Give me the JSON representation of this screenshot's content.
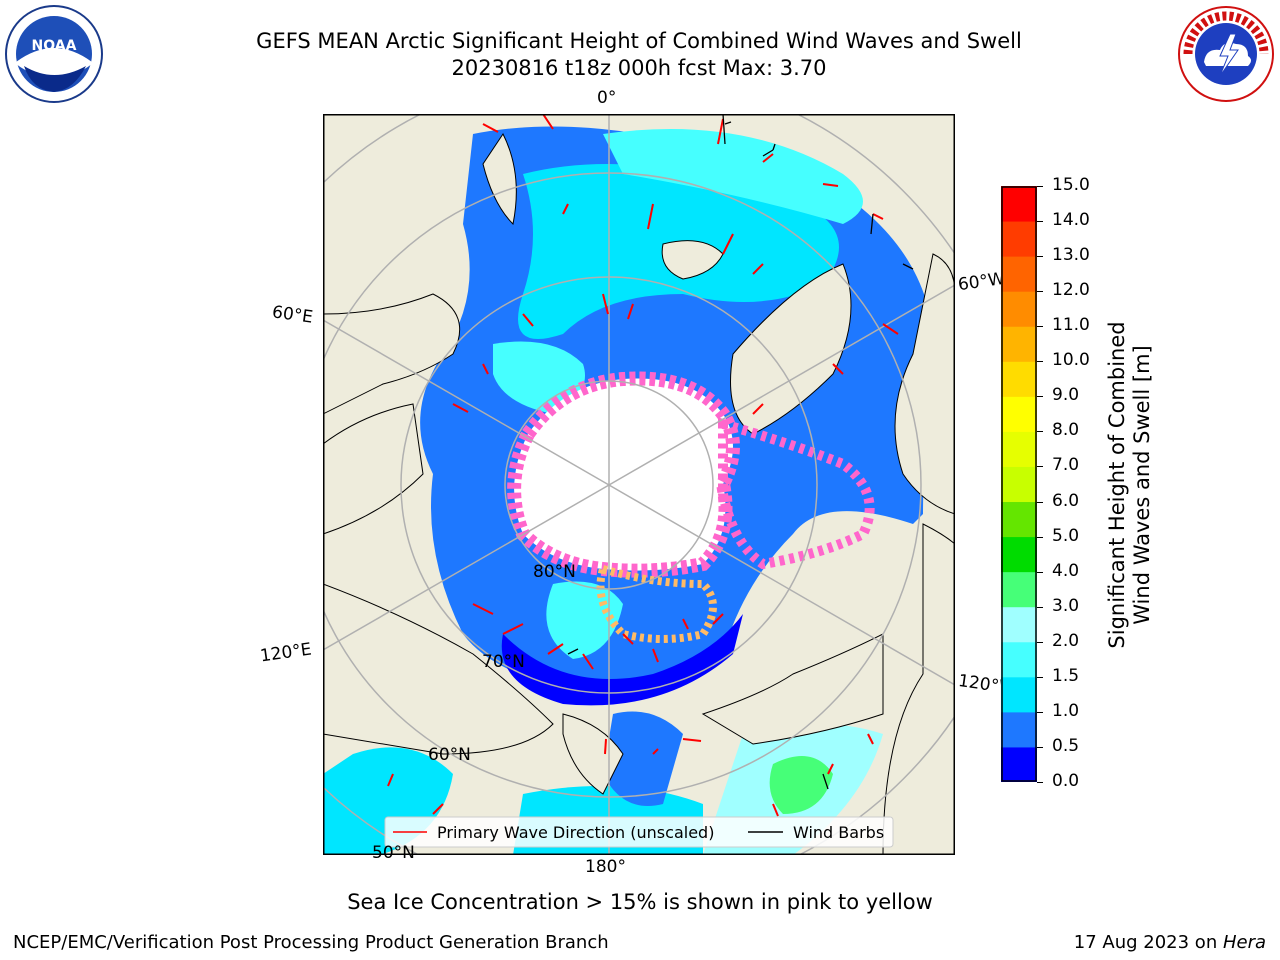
{
  "header": {
    "title_line1": "GEFS MEAN Arctic Significant Height of Combined Wind Waves and Swell",
    "title_line2": "20230816 t18z 000h fcst   Max: 3.70"
  },
  "logos": {
    "left_text": "NOAA",
    "right_text": "NATIONAL WEATHER SERVICE"
  },
  "map": {
    "projection": "north-polar-stereographic",
    "longitude_labels": {
      "top": "0°",
      "left_upper": "60°E",
      "left_lower": "120°E",
      "bottom": "180°",
      "right_upper": "60°W",
      "right_lower": "120°W"
    },
    "latitude_labels": [
      "80°N",
      "70°N",
      "60°N",
      "50°N"
    ],
    "colors": {
      "land": "#eeecdc",
      "ice_free_polar": "#ffffff",
      "ice_pink": "#ff66cc",
      "ice_orange": "#ffbb66",
      "grid": "#b0b0b0"
    }
  },
  "legend": {
    "primary_wave": "Primary Wave Direction (unscaled)",
    "wind_barbs": "Wind Barbs",
    "primary_wave_color": "#ff0000",
    "wind_barb_color": "#000000"
  },
  "colorbar": {
    "label_line1": "Significant Height of Combined",
    "label_line2": "Wind Waves and Swell [m]",
    "ticks": [
      "0.0",
      "0.5",
      "1.0",
      "1.5",
      "2.0",
      "3.0",
      "4.0",
      "5.0",
      "6.0",
      "7.0",
      "8.0",
      "9.0",
      "10.0",
      "11.0",
      "12.0",
      "13.0",
      "14.0",
      "15.0"
    ],
    "colors": [
      "#0000ff",
      "#1e78ff",
      "#00e6ff",
      "#46ffff",
      "#a0ffff",
      "#46ff78",
      "#00dc00",
      "#64e600",
      "#c8ff00",
      "#e6ff00",
      "#ffff00",
      "#ffdc00",
      "#ffb400",
      "#ff8c00",
      "#ff6400",
      "#ff3c00",
      "#ff0000"
    ]
  },
  "note": "Sea Ice Concentration > 15% is shown in pink to yellow",
  "footer": {
    "left": "NCEP/EMC/Verification Post Processing Product Generation Branch",
    "right_prefix": "17 Aug 2023 on ",
    "right_machine": "Hera"
  }
}
